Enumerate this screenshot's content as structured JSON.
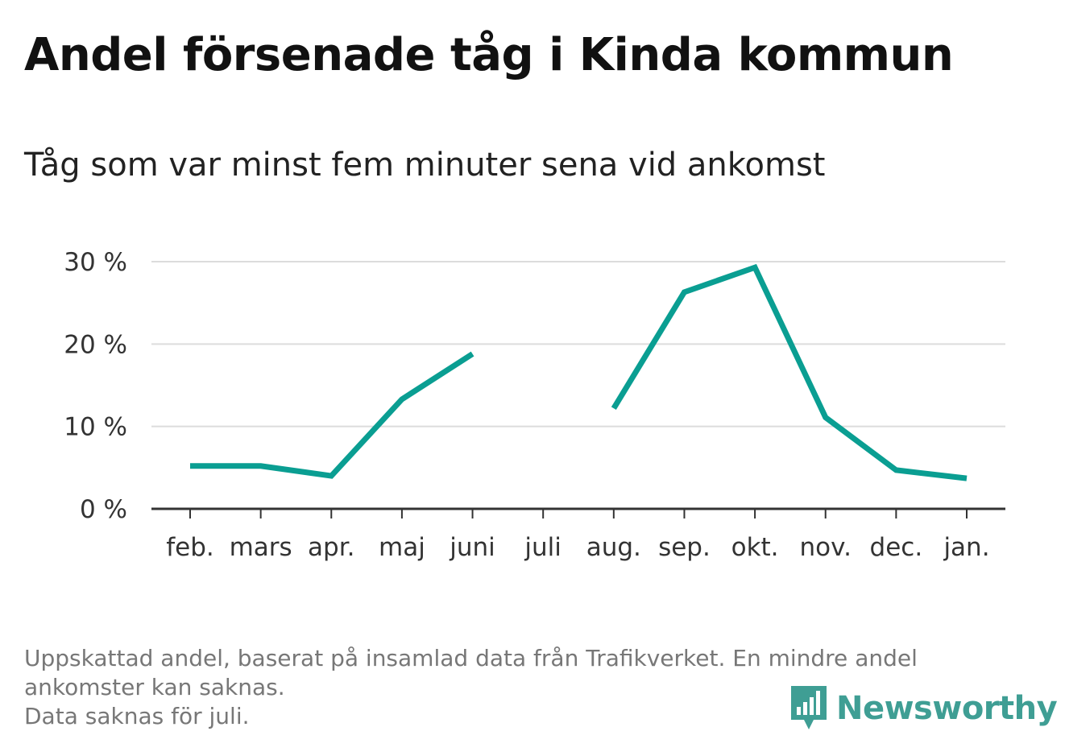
{
  "header": {
    "title": "Andel försenade tåg i Kinda kommun",
    "subtitle": "Tåg som var minst fem minuter sena vid ankomst"
  },
  "footer": {
    "note_line1": "Uppskattad andel, baserat på insamlad data från Trafikverket. En mindre andel ankomster kan saknas.",
    "note_line2": "Data saknas för juli."
  },
  "brand": {
    "name": "Newsworthy",
    "color": "#3f9e94",
    "icon": "bar-chart-speech-bubble-icon"
  },
  "chart_data": {
    "type": "line",
    "categories": [
      "feb.",
      "mars",
      "apr.",
      "maj",
      "juni",
      "juli",
      "aug.",
      "sep.",
      "okt.",
      "nov.",
      "dec.",
      "jan."
    ],
    "series": [
      {
        "values": [
          5.2,
          5.2,
          4.0,
          13.3,
          18.8,
          null,
          12.2,
          26.3,
          29.3,
          11.1,
          4.7,
          3.7
        ],
        "color": "#0a9e92"
      }
    ],
    "yticks": [
      0,
      10,
      20,
      30
    ],
    "ytick_labels": [
      "0 %",
      "10 %",
      "20 %",
      "30 %"
    ],
    "ylim": [
      0,
      30
    ],
    "grid": true,
    "xlabel": "",
    "ylabel": ""
  }
}
